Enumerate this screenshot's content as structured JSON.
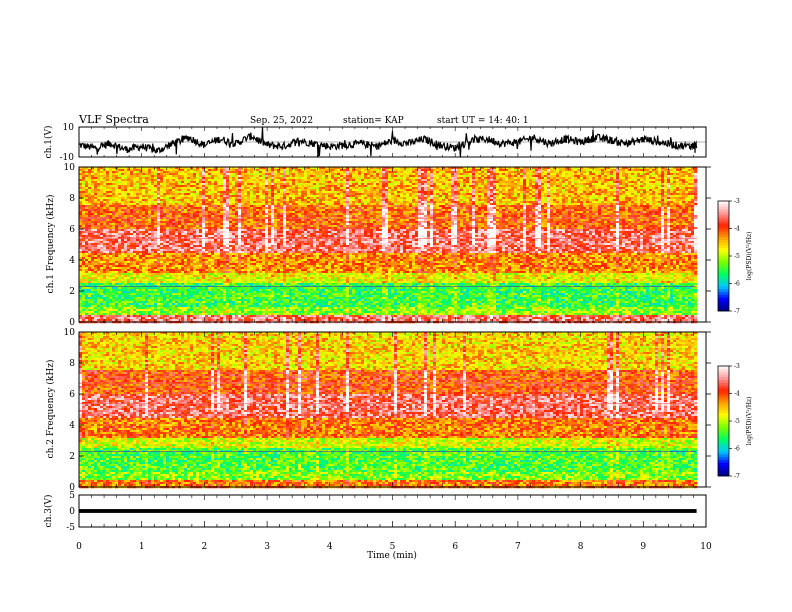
{
  "header": {
    "title": "VLF Spectra",
    "date": "Sep. 25, 2022",
    "station": "station= KAP",
    "start_ut": "start  UT =   14: 40: 1"
  },
  "colors": {
    "spectrogram_scale": [
      "#00007a",
      "#0000ff",
      "#00c8ff",
      "#00ff64",
      "#78ff00",
      "#ffff00",
      "#ffa000",
      "#ff2000",
      "#ff9999",
      "#ffffff"
    ],
    "trace": "#000000"
  },
  "chart_data": [
    {
      "type": "line",
      "name": "ch1-waveform",
      "ylabel": "ch.1(V)",
      "ylim": [
        -10,
        10
      ],
      "tick_labels": [
        "-10",
        "10"
      ],
      "xlim": [
        0,
        10
      ],
      "x": [
        0,
        0.25,
        0.5,
        0.75,
        1.0,
        1.25,
        1.5,
        1.75,
        2.0,
        2.25,
        2.5,
        2.75,
        3.0,
        3.25,
        3.5,
        3.75,
        4.0,
        4.25,
        4.5,
        4.75,
        5.0,
        5.25,
        5.5,
        5.75,
        6.0,
        6.25,
        6.5,
        6.75,
        7.0,
        7.25,
        7.5,
        7.75,
        8.0,
        8.25,
        8.5,
        8.75,
        9.0,
        9.25,
        9.5,
        9.75,
        9.85
      ],
      "y": [
        -2,
        -4,
        -1,
        -5,
        -3,
        -6,
        -1,
        3,
        -2,
        2,
        -1,
        4,
        -2,
        -3,
        1,
        -1,
        -3,
        -2,
        -1,
        -3,
        1,
        -1,
        2,
        -2,
        -4,
        1,
        2,
        -1,
        0,
        3,
        -1,
        2,
        0,
        3,
        1,
        -1,
        2,
        0,
        -2,
        -3,
        -2
      ]
    },
    {
      "type": "heatmap",
      "name": "ch1-spectrogram",
      "ylabel": "ch.1\nFrequency (kHz)",
      "ylim": [
        0,
        10
      ],
      "y_tick_labels": [
        "0",
        "2",
        "4",
        "6",
        "8",
        "10"
      ],
      "xlim": [
        0,
        10
      ],
      "data_end_min": 9.85,
      "colorbar": {
        "label": "log(PSD)(V²/Hz)",
        "range": [
          -7,
          -3
        ],
        "tick_labels": [
          "-3",
          "-4",
          "-5",
          "-6",
          "-7"
        ]
      },
      "frequency_bands_kHz": [
        {
          "range": [
            0,
            0.4
          ],
          "log_psd": -3.6
        },
        {
          "range": [
            0.4,
            1.0
          ],
          "log_psd": -5.2
        },
        {
          "range": [
            1.0,
            2.5
          ],
          "log_psd": -5.5
        },
        {
          "range": [
            2.5,
            3.2
          ],
          "log_psd": -4.8
        },
        {
          "range": [
            3.2,
            4.5
          ],
          "log_psd": -4.3
        },
        {
          "range": [
            4.5,
            6.0
          ],
          "log_psd": -3.6
        },
        {
          "range": [
            6.0,
            7.5
          ],
          "log_psd": -4.1
        },
        {
          "range": [
            7.5,
            10.0
          ],
          "log_psd": -4.5
        }
      ]
    },
    {
      "type": "heatmap",
      "name": "ch2-spectrogram",
      "ylabel": "ch.2\nFrequency (kHz)",
      "ylim": [
        0,
        10
      ],
      "y_tick_labels": [
        "0",
        "2",
        "4",
        "6",
        "8",
        "10"
      ],
      "xlim": [
        0,
        10
      ],
      "data_end_min": 9.85,
      "colorbar": {
        "label": "log(PSD)(V²/Hz)",
        "range": [
          -7,
          -3
        ],
        "tick_labels": [
          "-3",
          "-4",
          "-5",
          "-6",
          "-7"
        ]
      },
      "frequency_bands_kHz": [
        {
          "range": [
            0,
            0.4
          ],
          "log_psd": -4.2
        },
        {
          "range": [
            0.4,
            1.0
          ],
          "log_psd": -5.2
        },
        {
          "range": [
            1.0,
            2.5
          ],
          "log_psd": -5.4
        },
        {
          "range": [
            2.5,
            3.2
          ],
          "log_psd": -4.9
        },
        {
          "range": [
            3.2,
            4.5
          ],
          "log_psd": -4.2
        },
        {
          "range": [
            4.5,
            6.0
          ],
          "log_psd": -3.6
        },
        {
          "range": [
            6.0,
            7.5
          ],
          "log_psd": -4.0
        },
        {
          "range": [
            7.5,
            10.0
          ],
          "log_psd": -4.6
        }
      ]
    },
    {
      "type": "line",
      "name": "ch3-waveform",
      "ylabel": "ch.3(V)",
      "ylim": [
        -5,
        5
      ],
      "tick_labels": [
        "-5",
        "0",
        "5"
      ],
      "xlim": [
        0,
        10
      ],
      "x": [
        0,
        9.85
      ],
      "y": [
        0,
        0
      ]
    }
  ],
  "x_axis": {
    "label": "Time (min)",
    "tick_labels": [
      "0",
      "1",
      "2",
      "3",
      "4",
      "5",
      "6",
      "7",
      "8",
      "9",
      "10"
    ]
  }
}
